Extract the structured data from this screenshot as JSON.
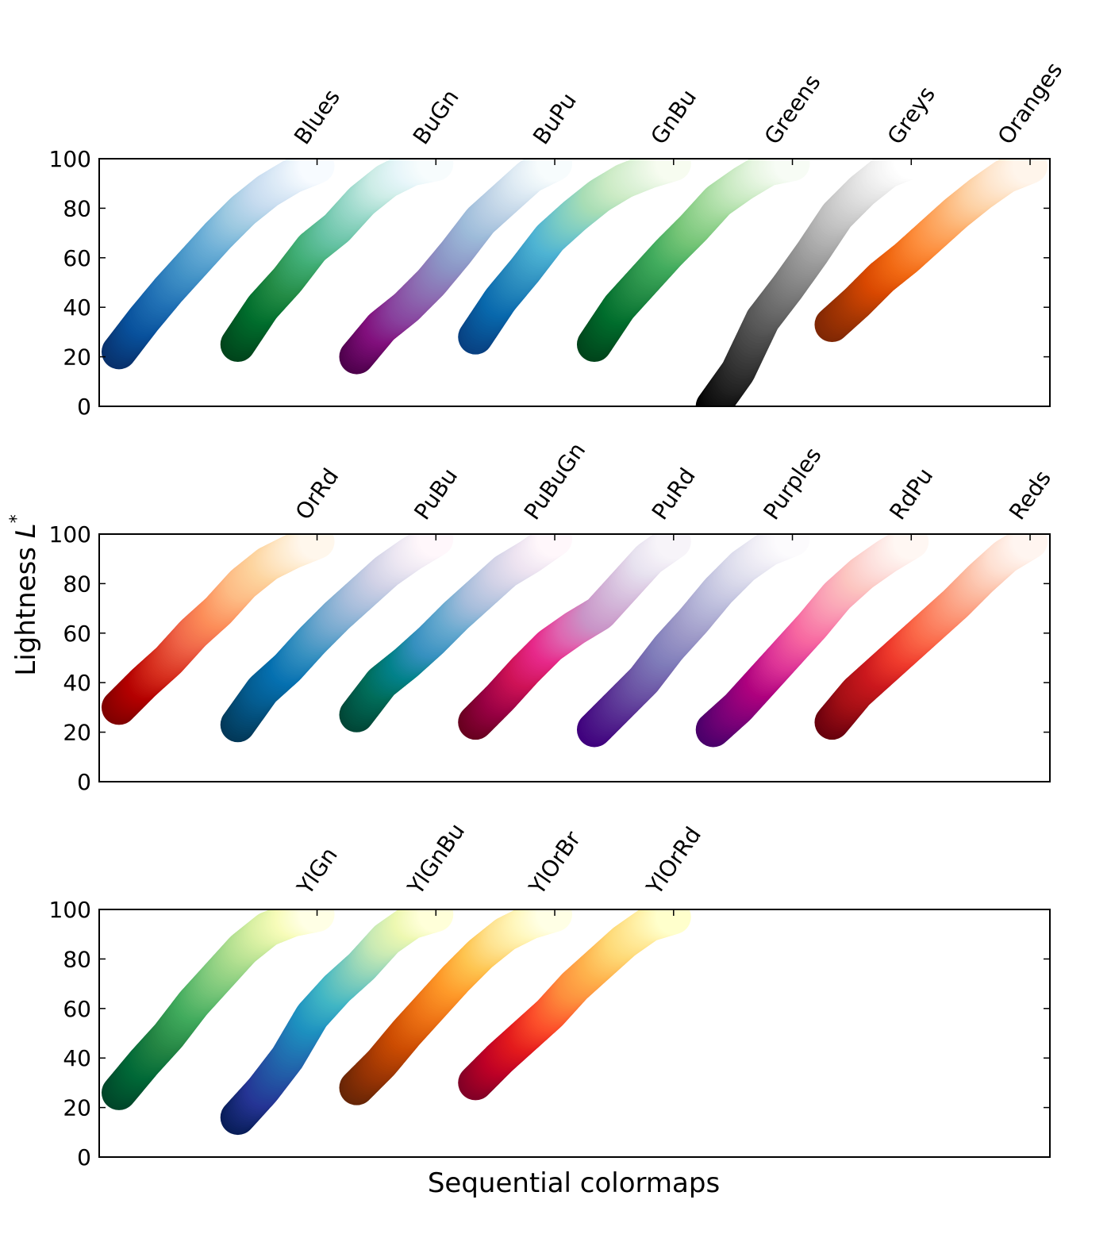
{
  "chart_data": {
    "type": "line",
    "xlabel": "Sequential colormaps",
    "ylabel": "Lightness L*",
    "ylim": [
      0,
      100
    ],
    "yticks": [
      "0",
      "20",
      "40",
      "60",
      "80",
      "100"
    ],
    "xlim": [
      -0.1,
      4.7
    ],
    "colormap_spacing": 0.6,
    "panels": [
      {
        "colormaps": [
          {
            "name": "Blues",
            "lightness": [
              22,
              35,
              47,
              58,
              69,
              79,
              87,
              93,
              97
            ],
            "colors": [
              "#08306b",
              "#08519c",
              "#2171b5",
              "#4292c6",
              "#6baed6",
              "#9ecae1",
              "#c6dbef",
              "#deebf7",
              "#f7fbff"
            ]
          },
          {
            "name": "BuGn",
            "lightness": [
              25,
              40,
              51,
              64,
              72,
              83,
              91,
              96,
              98
            ],
            "colors": [
              "#00441b",
              "#006d2c",
              "#238b45",
              "#41ae76",
              "#66c2a4",
              "#99d8c9",
              "#ccece6",
              "#e5f5f9",
              "#f7fcfd"
            ]
          },
          {
            "name": "BuPu",
            "lightness": [
              20,
              32,
              40,
              50,
              62,
              75,
              84,
              93,
              98
            ],
            "colors": [
              "#4d004b",
              "#810f7c",
              "#88419d",
              "#8c6bb1",
              "#8c96c6",
              "#9ebcda",
              "#bfd3e6",
              "#e0ecf4",
              "#f7fcfd"
            ]
          },
          {
            "name": "GnBu",
            "lightness": [
              28,
              43,
              55,
              68,
              77,
              85,
              91,
              95,
              98
            ],
            "colors": [
              "#084081",
              "#0868ac",
              "#2b8cbe",
              "#4eb3d3",
              "#7bccc4",
              "#a8ddb5",
              "#ccebc5",
              "#e0f3db",
              "#f7fcf0"
            ]
          },
          {
            "name": "Greens",
            "lightness": [
              25,
              40,
              51,
              62,
              72,
              83,
              90,
              96,
              98
            ],
            "colors": [
              "#00441b",
              "#006d2c",
              "#238b45",
              "#41ab5d",
              "#74c476",
              "#a1d99b",
              "#c7e9c0",
              "#e5f5e0",
              "#f7fcf5"
            ]
          },
          {
            "name": "Greys",
            "lightness": [
              0,
              14,
              35,
              48,
              62,
              77,
              87,
              95,
              99
            ],
            "colors": [
              "#000000",
              "#252525",
              "#525252",
              "#737373",
              "#969696",
              "#bdbdbd",
              "#d9d9d9",
              "#f0f0f0",
              "#ffffff"
            ]
          },
          {
            "name": "Oranges",
            "lightness": [
              33,
              42,
              52,
              60,
              69,
              78,
              86,
              93,
              97
            ],
            "colors": [
              "#7f2704",
              "#a63603",
              "#d94801",
              "#f16913",
              "#fd8d3c",
              "#fdae6b",
              "#fdd0a2",
              "#fee6ce",
              "#fff5eb"
            ]
          }
        ]
      },
      {
        "colormaps": [
          {
            "name": "OrRd",
            "lightness": [
              30,
              40,
              49,
              60,
              69,
              80,
              88,
              93,
              97
            ],
            "colors": [
              "#7f0000",
              "#b30000",
              "#d7301f",
              "#ef6548",
              "#fc8d59",
              "#fdbb84",
              "#fdd49e",
              "#fee8c8",
              "#fff7ec"
            ]
          },
          {
            "name": "PuBu",
            "lightness": [
              23,
              37,
              46,
              57,
              67,
              76,
              85,
              92,
              98
            ],
            "colors": [
              "#023858",
              "#045a8d",
              "#0570b0",
              "#3690c0",
              "#74a9cf",
              "#a6bddb",
              "#d0d1e6",
              "#ece7f2",
              "#fff7fb"
            ]
          },
          {
            "name": "PuBuGn",
            "lightness": [
              27,
              40,
              48,
              57,
              67,
              76,
              85,
              91,
              98
            ],
            "colors": [
              "#014636",
              "#016c59",
              "#02818a",
              "#3690c0",
              "#67a9cf",
              "#a6bddb",
              "#d0d1e6",
              "#ece2f0",
              "#fff7fb"
            ]
          },
          {
            "name": "PuRd",
            "lightness": [
              24,
              34,
              45,
              55,
              62,
              68,
              79,
              90,
              97
            ],
            "colors": [
              "#67001f",
              "#980043",
              "#ce1256",
              "#e7298a",
              "#df65b0",
              "#c994c7",
              "#d4b9da",
              "#e7e1ef",
              "#f7f4f9"
            ]
          },
          {
            "name": "Purples",
            "lightness": [
              21,
              31,
              41,
              54,
              65,
              77,
              87,
              94,
              98
            ],
            "colors": [
              "#3f007d",
              "#54278f",
              "#6a51a3",
              "#807dba",
              "#9e9ac8",
              "#bcbddc",
              "#dadaeb",
              "#efedf5",
              "#fcfbfd"
            ]
          },
          {
            "name": "RdPu",
            "lightness": [
              21,
              30,
              41,
              52,
              63,
              75,
              84,
              91,
              97
            ],
            "colors": [
              "#49006a",
              "#7a0177",
              "#ae017e",
              "#dd3497",
              "#f768a1",
              "#fa9fb5",
              "#fcc5c0",
              "#fde0dd",
              "#fff7f3"
            ]
          },
          {
            "name": "Reds",
            "lightness": [
              24,
              36,
              45,
              54,
              63,
              72,
              82,
              91,
              97
            ],
            "colors": [
              "#67000d",
              "#a50f15",
              "#cb181d",
              "#ef3b2c",
              "#fb6a4a",
              "#fc9272",
              "#fcbba1",
              "#fee0d2",
              "#fff5f0"
            ]
          }
        ]
      },
      {
        "colormaps": [
          {
            "name": "YlGn",
            "lightness": [
              26,
              38,
              49,
              62,
              73,
              84,
              92,
              96,
              98
            ],
            "colors": [
              "#004529",
              "#006837",
              "#238443",
              "#41ab5d",
              "#78c679",
              "#addd8e",
              "#d9f0a3",
              "#f7fcb9",
              "#ffffe5"
            ]
          },
          {
            "name": "YlGnBu",
            "lightness": [
              16,
              27,
              40,
              57,
              68,
              77,
              88,
              95,
              98
            ],
            "colors": [
              "#081d58",
              "#253494",
              "#225ea8",
              "#1d91c0",
              "#41b6c4",
              "#7fcdbb",
              "#c7e9b4",
              "#edf8b1",
              "#ffffd9"
            ]
          },
          {
            "name": "YlOrBr",
            "lightness": [
              28,
              38,
              50,
              61,
              72,
              82,
              90,
              95,
              98
            ],
            "colors": [
              "#662506",
              "#993404",
              "#cc4c02",
              "#ec7014",
              "#fe9929",
              "#fec44f",
              "#fee391",
              "#fff7bc",
              "#ffffe5"
            ]
          },
          {
            "name": "YlOrRd",
            "lightness": [
              30,
              40,
              49,
              58,
              69,
              78,
              87,
              94,
              97
            ],
            "colors": [
              "#800026",
              "#bd0026",
              "#e31a1c",
              "#fc4e2a",
              "#fd8d3c",
              "#feb24c",
              "#fed976",
              "#ffeda0",
              "#ffffcc"
            ]
          }
        ]
      }
    ]
  }
}
